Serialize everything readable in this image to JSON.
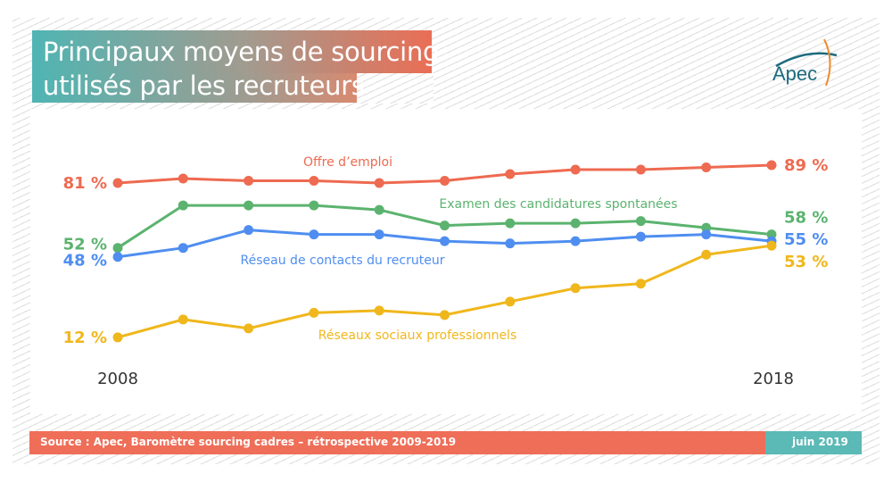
{
  "title": {
    "line1": "Principaux moyens de sourcing",
    "line2": "utilisés par les recruteurs"
  },
  "logo": {
    "text": "Apec",
    "icon": "apec-logo-icon"
  },
  "footer": {
    "source": "Source : Apec, Baromètre sourcing cadres – rétrospective 2009-2019",
    "date": "juin 2019"
  },
  "colors": {
    "orange": "#ee6a50",
    "green": "#5bb36f",
    "blue": "#4f8ef0",
    "yellow": "#f0b71c",
    "axis_text": "#333333"
  },
  "chart_data": {
    "type": "line",
    "title": "Principaux moyens de sourcing utilisés par les recruteurs",
    "xlabel": "",
    "ylabel": "",
    "x": [
      2008,
      2009,
      2010,
      2011,
      2012,
      2013,
      2014,
      2015,
      2016,
      2017,
      2018
    ],
    "x_tick_labels": [
      "2008",
      "2018"
    ],
    "ylim": [
      0,
      100
    ],
    "grid": false,
    "series": [
      {
        "name": "Offre d’emploi",
        "color": "#ee6a50",
        "values": [
          81,
          83,
          82,
          82,
          81,
          82,
          85,
          87,
          87,
          88,
          89
        ],
        "start_label": "81 %",
        "end_label": "89 %"
      },
      {
        "name": "Examen des candidatures spontanées",
        "color": "#5bb36f",
        "values": [
          52,
          71,
          71,
          71,
          69,
          62,
          63,
          63,
          64,
          61,
          58
        ],
        "start_label": "52 %",
        "end_label": "58 %"
      },
      {
        "name": "Réseau de contacts du recruteur",
        "color": "#4f8ef0",
        "values": [
          48,
          52,
          60,
          58,
          58,
          55,
          54,
          55,
          57,
          58,
          55
        ],
        "start_label": "48 %",
        "end_label": "55 %"
      },
      {
        "name": "Réseaux sociaux professionnels",
        "color": "#f0b71c",
        "values": [
          12,
          20,
          16,
          23,
          24,
          22,
          28,
          34,
          36,
          49,
          53
        ],
        "start_label": "12 %",
        "end_label": "53 %"
      }
    ]
  }
}
